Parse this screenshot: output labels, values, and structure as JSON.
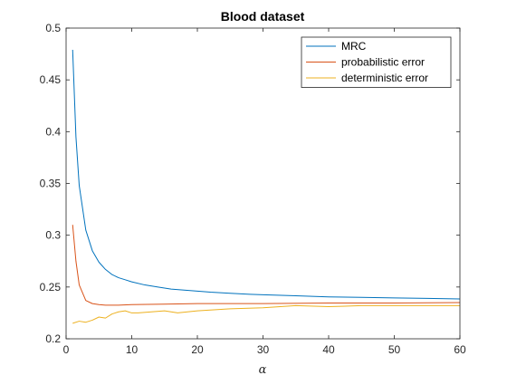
{
  "chart_data": {
    "type": "line",
    "title": "Blood dataset",
    "xlabel": "α",
    "ylabel": "",
    "xlim": [
      0,
      60
    ],
    "ylim": [
      0.2,
      0.5
    ],
    "xticks": [
      0,
      10,
      20,
      30,
      40,
      50,
      60
    ],
    "xtick_labels": [
      "0",
      "10",
      "20",
      "30",
      "40",
      "50",
      "60"
    ],
    "yticks": [
      0.2,
      0.25,
      0.3,
      0.35,
      0.4,
      0.45,
      0.5
    ],
    "ytick_labels": [
      "0.2",
      "0.25",
      "0.3",
      "0.35",
      "0.4",
      "0.45",
      "0.5"
    ],
    "grid": false,
    "legend_position": "top-right",
    "series": [
      {
        "name": "MRC",
        "color": "#0072bd",
        "x": [
          1,
          1.5,
          2,
          3,
          4,
          5,
          6,
          7,
          8,
          9,
          10,
          12,
          14,
          16,
          18,
          20,
          22,
          25,
          28,
          30,
          35,
          40,
          45,
          50,
          55,
          60
        ],
        "y": [
          0.479,
          0.395,
          0.348,
          0.305,
          0.285,
          0.274,
          0.267,
          0.262,
          0.259,
          0.257,
          0.255,
          0.252,
          0.25,
          0.248,
          0.247,
          0.246,
          0.245,
          0.244,
          0.243,
          0.2425,
          0.2415,
          0.2405,
          0.24,
          0.2395,
          0.239,
          0.2385
        ]
      },
      {
        "name": "probabilistic error",
        "color": "#d95319",
        "x": [
          1,
          1.5,
          2,
          3,
          4,
          5,
          6,
          8,
          10,
          15,
          20,
          30,
          40,
          50,
          60
        ],
        "y": [
          0.31,
          0.275,
          0.252,
          0.237,
          0.234,
          0.233,
          0.2325,
          0.2325,
          0.233,
          0.2335,
          0.234,
          0.234,
          0.2345,
          0.2345,
          0.235
        ]
      },
      {
        "name": "deterministic error",
        "color": "#edb120",
        "x": [
          1,
          2,
          3,
          4,
          5,
          6,
          7,
          8,
          9,
          10,
          11,
          13,
          15,
          17,
          20,
          25,
          30,
          35,
          40,
          45,
          50,
          55,
          60
        ],
        "y": [
          0.215,
          0.217,
          0.216,
          0.218,
          0.221,
          0.22,
          0.224,
          0.226,
          0.227,
          0.225,
          0.225,
          0.226,
          0.227,
          0.225,
          0.227,
          0.229,
          0.23,
          0.232,
          0.231,
          0.232,
          0.232,
          0.232,
          0.232
        ]
      }
    ]
  }
}
